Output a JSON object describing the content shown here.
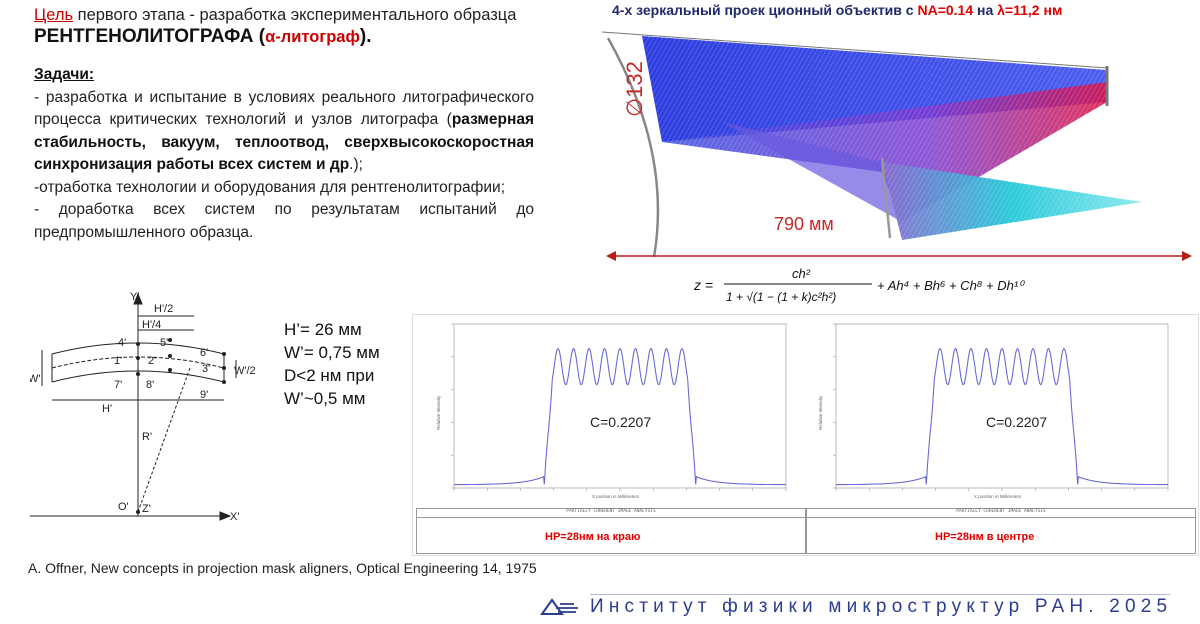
{
  "goal": {
    "label": "Цель",
    "text1": " первого этапа - разработка экспериментального образца",
    "bold": "РЕНТГЕНОЛИТОГРАФА",
    "paren_open": " (",
    "alpha": "α-литограф",
    "paren_close": ")."
  },
  "tasks": {
    "label": "Задачи:",
    "item1_a": "- разработка и испытание в условиях реального литографического процесса критических технологий и узлов литографа (",
    "item1_b": "размерная стабильность, вакуум, теплоотвод, сверхвысокоскоростная синхронизация работы всех систем и др",
    "item1_c": ".);",
    "item2": "-отработка технологии и оборудования для рентгенолитографии;",
    "item3": "- доработка всех систем по результатам испытаний до предпромышленного образца."
  },
  "lens": {
    "title_a": "4-х зеркальный проек ционный объектив с ",
    "na": "NA=0.14",
    "title_b": " на ",
    "lambda": "λ=11,2 нм",
    "diameter": "∅132",
    "length": "790 мм",
    "formula_lhs": "z =",
    "formula_num": "ch²",
    "formula_den": "1 + √(1 − (1 + k)c²h²)",
    "formula_rhs": "+ Ah⁴ + Bh⁶ + Ch⁸ + Dh¹⁰"
  },
  "field_diagram": {
    "y_axis": "Y'",
    "x_axis": "X'",
    "h_half": "H'/2",
    "h_quarter": "H'/4",
    "h": "H'",
    "w": "W'",
    "w_half": "W'/2",
    "r": "R'",
    "o": "O'",
    "z": "Z'",
    "points": [
      "1'",
      "2'",
      "3'",
      "4'",
      "5'",
      "6'",
      "7'",
      "8'",
      "9'"
    ]
  },
  "params": [
    "H’= 26 мм",
    "W’= 0,75 мм",
    "D<2 нм при",
    "W’~0,5 мм"
  ],
  "panels": [
    {
      "c_value": "C=0.2207",
      "hp": "HP=28нм на краю",
      "footer_title": "PARTIALLY COHERENT IMAGE ANALYSIS"
    },
    {
      "c_value": "C=0.2207",
      "hp": "HP=28нм в центре",
      "footer_title": "PARTIALLY COHERENT IMAGE ANALYSIS"
    }
  ],
  "reference": "A. Offner, New concepts in projection mask aligners, Optical Engineering 14, 1975",
  "footer": "Институт физики микроструктур РАН. 2025",
  "colors": {
    "accent_red": "#e00000",
    "title_blue": "#1f2a6b",
    "curve": "#6a6ad8",
    "ray_blue": "#2233dd",
    "ray_red": "#dd1144",
    "ray_cyan": "#22c8d8"
  },
  "chart_data": [
    {
      "type": "line",
      "title": "",
      "xlabel": "X position in Millimeters",
      "ylabel": "Relative Intensity",
      "ylim": [
        0,
        1.0
      ],
      "annotation": "C=0.2207",
      "description_peaks": 9,
      "series": [
        {
          "values_min": 0.02,
          "values_peak": 0.85,
          "values_valley": 0.63
        }
      ]
    },
    {
      "type": "line",
      "title": "",
      "xlabel": "X position in Millimeters",
      "ylabel": "Relative Intensity",
      "ylim": [
        0,
        1.0
      ],
      "annotation": "C=0.2207",
      "description_peaks": 9,
      "series": [
        {
          "values_min": 0.02,
          "values_peak": 0.85,
          "values_valley": 0.63
        }
      ]
    }
  ]
}
